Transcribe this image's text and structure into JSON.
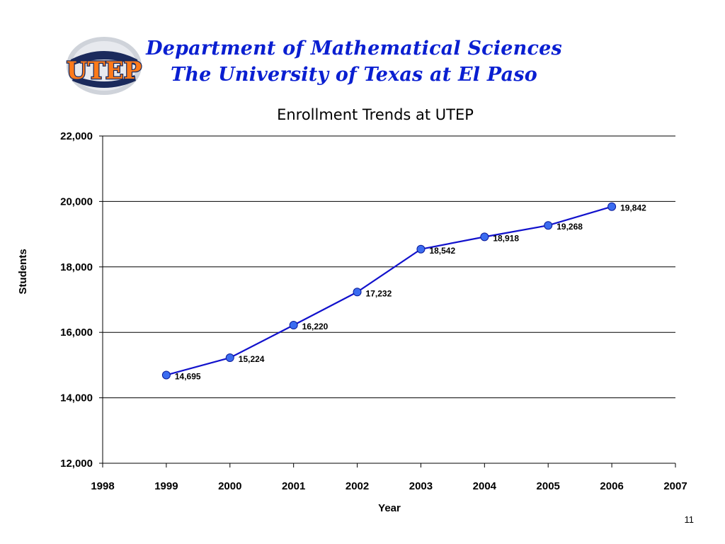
{
  "header": {
    "logo_text": "UTEP",
    "line1": "Department of Mathematical Sciences",
    "line2": "The University of Texas at El Paso"
  },
  "slide_number": "11",
  "colors": {
    "header_text": "#0a1fd1",
    "line": "#1111cc",
    "marker": "#3b6cf0"
  },
  "chart_data": {
    "type": "line",
    "title": "Enrollment Trends at UTEP",
    "xlabel": "Year",
    "ylabel": "Students",
    "xlim": [
      1998,
      2007
    ],
    "ylim": [
      12000,
      22000
    ],
    "x_ticks": [
      "1998",
      "1999",
      "2000",
      "2001",
      "2002",
      "2003",
      "2004",
      "2005",
      "2006",
      "2007"
    ],
    "y_ticks": [
      "12,000",
      "14,000",
      "16,000",
      "18,000",
      "20,000",
      "22,000"
    ],
    "grid": "horizontal",
    "series": [
      {
        "x": [
          1999,
          2000,
          2001,
          2002,
          2003,
          2004,
          2005,
          2006
        ],
        "values": [
          14695,
          15224,
          16220,
          17232,
          18542,
          18918,
          19268,
          19842
        ],
        "labels": [
          "14,695",
          "15,224",
          "16,220",
          "17,232",
          "18,542",
          "18,918",
          "19,268",
          "19,842"
        ]
      }
    ]
  }
}
